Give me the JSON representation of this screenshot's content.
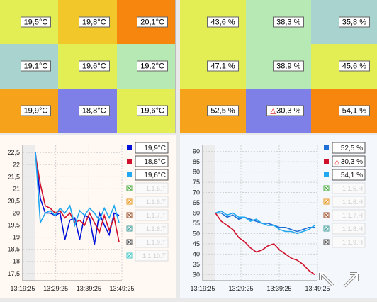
{
  "colors": {
    "yellow_green": "#e3ee54",
    "gold": "#f1c72a",
    "orange": "#f7860f",
    "teal": "#a9d3cf",
    "light_green": "#b6e9b3",
    "periwinkle": "#7f7fe8",
    "orange_light": "#f7a21b",
    "pale_green": "#c0eab5"
  },
  "temp_grid": {
    "cells": [
      {
        "label": "19,5°C",
        "color": "#e3ee54"
      },
      {
        "label": "19,8°C",
        "color": "#f1c72a"
      },
      {
        "label": "20,1°C",
        "color": "#f7860f"
      },
      {
        "label": "19,1°C",
        "color": "#a9d3cf"
      },
      {
        "label": "19,6°C",
        "color": "#e3ee54"
      },
      {
        "label": "19,2°C",
        "color": "#b6e9b3"
      },
      {
        "label": "19,9°C",
        "color": "#f7a21b"
      },
      {
        "label": "18,8°C",
        "color": "#7f7fe8"
      },
      {
        "label": "19,6°C",
        "color": "#e3ee54"
      }
    ]
  },
  "hum_grid": {
    "cells": [
      {
        "label": "43,6 %",
        "color": "#e3ee54",
        "alarm": false
      },
      {
        "label": "38,3 %",
        "color": "#b6e9b3",
        "alarm": false
      },
      {
        "label": "35,8 %",
        "color": "#a9d3cf",
        "alarm": false
      },
      {
        "label": "47,1 %",
        "color": "#e3ee54",
        "alarm": false
      },
      {
        "label": "38,9 %",
        "color": "#b6e9b3",
        "alarm": false
      },
      {
        "label": "45,6 %",
        "color": "#e3ee54",
        "alarm": false
      },
      {
        "label": "52,5 %",
        "color": "#f7a21b",
        "alarm": false
      },
      {
        "label": "30,3 %",
        "color": "#7f7fe8",
        "alarm": true
      },
      {
        "label": "54,1 %",
        "color": "#f7860f",
        "alarm": false
      }
    ]
  },
  "chart_data": [
    {
      "type": "line",
      "x_ticks": [
        "13:19:25",
        "13:29:25",
        "13:39:25",
        "13:49:25"
      ],
      "y_ticks": [
        "22,5",
        "22",
        "21,5",
        "21",
        "20,5",
        "20",
        "19,5",
        "19",
        "18,5",
        "18",
        "17,5"
      ],
      "ylim": [
        17.2,
        22.8
      ],
      "grid": true,
      "legend_position": "right",
      "series": [
        {
          "color": "#0010d8",
          "label": "19,9°C",
          "values": [
            22.5,
            20.6,
            20.0,
            20.0,
            19.9,
            20.0,
            18.9,
            19.7,
            19.8,
            18.9,
            19.9,
            19.8,
            18.7,
            20.0,
            19.5,
            19.1,
            20.0,
            19.9
          ]
        },
        {
          "color": "#d0102a",
          "label": "18,8°C",
          "values": [
            22.4,
            21.2,
            20.3,
            20.2,
            20.0,
            20.1,
            19.8,
            20.0,
            19.6,
            19.7,
            19.5,
            20.0,
            19.6,
            19.2,
            19.9,
            19.3,
            19.8,
            18.8
          ]
        },
        {
          "color": "#20a8f0",
          "label": "19,6°C",
          "values": [
            22.5,
            19.6,
            20.0,
            20.1,
            19.9,
            20.2,
            20.0,
            20.3,
            19.5,
            20.1,
            19.9,
            20.2,
            20.0,
            19.7,
            20.2,
            19.8,
            20.3,
            19.6
          ]
        }
      ],
      "disabled_legend": [
        {
          "label": "1.1.5.T",
          "icon_color": "#4caa40"
        },
        {
          "label": "1.1.6.T",
          "icon_color": "#e8961e"
        },
        {
          "label": "1.1.7.T",
          "icon_color": "#a0522d"
        },
        {
          "label": "1.1.8.T",
          "icon_color": "#4aa0a0"
        },
        {
          "label": "1.1.9.T",
          "icon_color": "#555555"
        },
        {
          "label": "1.1.10.T",
          "icon_color": "#40c8c8"
        }
      ]
    },
    {
      "type": "line",
      "x_ticks": [
        "13:19:25",
        "13:29:25",
        "13:39:25",
        "13:49:25"
      ],
      "y_ticks": [
        "90",
        "85",
        "80",
        "75",
        "70",
        "65",
        "60",
        "55",
        "50",
        "45",
        "40",
        "35",
        "30"
      ],
      "ylim": [
        27,
        93
      ],
      "grid": true,
      "legend_position": "right",
      "series": [
        {
          "color": "#1f6fd8",
          "label": "52,5 %",
          "values": [
            60,
            60,
            58,
            59,
            57,
            58,
            57,
            56,
            55,
            55,
            54,
            53,
            53,
            52,
            51,
            52,
            53,
            53
          ]
        },
        {
          "color": "#d0102a",
          "label": "30,3 %",
          "alarm": true,
          "values": [
            60,
            56,
            54,
            52,
            48,
            46,
            43,
            41,
            42,
            44,
            45,
            42,
            40,
            38,
            37,
            35,
            32,
            30
          ]
        },
        {
          "color": "#20a8f0",
          "label": "54,1 %",
          "values": [
            60,
            61,
            59,
            60,
            58,
            58,
            56,
            57,
            55,
            54,
            54,
            52,
            51,
            51,
            50,
            51,
            52,
            54
          ]
        }
      ],
      "disabled_legend": [
        {
          "label": "1.1.5.H",
          "icon_color": "#4caa40"
        },
        {
          "label": "1.1.6.H",
          "icon_color": "#e8961e"
        },
        {
          "label": "1.1.7.H",
          "icon_color": "#a0522d"
        },
        {
          "label": "1.1.8.H",
          "icon_color": "#4aa0a0"
        },
        {
          "label": "1.1.9.H",
          "icon_color": "#555555"
        }
      ]
    }
  ]
}
